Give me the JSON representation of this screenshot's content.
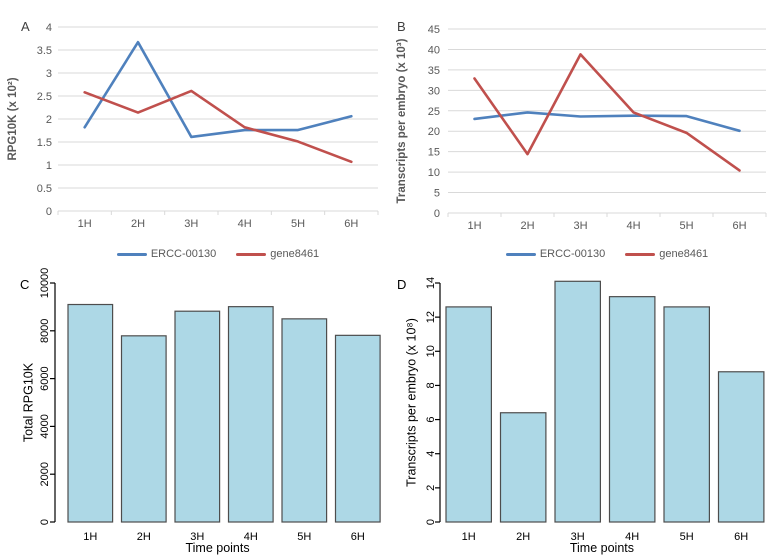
{
  "figure": {
    "background": "#ffffff",
    "colors": {
      "series_blue": "#4F81BD",
      "series_red": "#C0504D",
      "gridline": "#D9D9D9",
      "excel_text": "#595959",
      "bar_fill": "#ADD8E6",
      "bar_border": "#4d4d4d",
      "r_axis": "#000000"
    }
  },
  "chart_data": [
    {
      "type": "line",
      "panel_label": "A",
      "categories": [
        "1H",
        "2H",
        "3H",
        "4H",
        "5H",
        "6H"
      ],
      "series": [
        {
          "name": "ERCC-00130",
          "color": "#4F81BD",
          "values": [
            1.82,
            3.67,
            1.61,
            1.76,
            1.76,
            2.06
          ]
        },
        {
          "name": "gene8461",
          "color": "#C0504D",
          "values": [
            2.58,
            2.14,
            2.61,
            1.82,
            1.51,
            1.07
          ]
        }
      ],
      "title": "",
      "xlabel": "",
      "ylabel": "RPG10K (x 10²)",
      "ylim": [
        0,
        4
      ],
      "ytick_step": 0.5,
      "grid": true,
      "legend_position": "bottom"
    },
    {
      "type": "line",
      "panel_label": "B",
      "categories": [
        "1H",
        "2H",
        "3H",
        "4H",
        "5H",
        "6H"
      ],
      "series": [
        {
          "name": "ERCC-00130",
          "color": "#4F81BD",
          "values": [
            23.0,
            24.6,
            23.6,
            23.8,
            23.7,
            20.1
          ]
        },
        {
          "name": "gene8461",
          "color": "#C0504D",
          "values": [
            32.9,
            14.4,
            38.8,
            24.6,
            19.6,
            10.4
          ]
        }
      ],
      "title": "",
      "xlabel": "",
      "ylabel": "Transcripts per embryo (x 10³)",
      "ylim": [
        0,
        45
      ],
      "ytick_step": 5,
      "grid": true,
      "legend_position": "bottom"
    },
    {
      "type": "bar",
      "panel_label": "C",
      "categories": [
        "1H",
        "2H",
        "3H",
        "4H",
        "5H",
        "6H"
      ],
      "values": [
        9100,
        7790,
        8820,
        9010,
        8500,
        7810
      ],
      "title": "",
      "xlabel": "Time points",
      "ylabel": "Total RPG10K",
      "ylim": [
        0,
        10000
      ],
      "ytick_step": 2000,
      "ytick_labels_rotated": true,
      "grid": false,
      "bar_fill": "#ADD8E6",
      "bar_border": "#4d4d4d"
    },
    {
      "type": "bar",
      "panel_label": "D",
      "categories": [
        "1H",
        "2H",
        "3H",
        "4H",
        "5H",
        "6H"
      ],
      "values": [
        12.6,
        6.4,
        14.1,
        13.2,
        12.6,
        8.8
      ],
      "title": "",
      "xlabel": "Time points",
      "ylabel": "Transcripts per embryo (x 10⁸)",
      "ylim": [
        0,
        14
      ],
      "ytick_step": 2,
      "ytick_labels_rotated": true,
      "grid": false,
      "bar_fill": "#ADD8E6",
      "bar_border": "#4d4d4d"
    }
  ]
}
